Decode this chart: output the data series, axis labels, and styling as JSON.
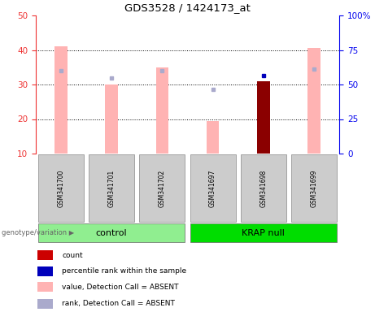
{
  "title": "GDS3528 / 1424173_at",
  "samples": [
    "GSM341700",
    "GSM341701",
    "GSM341702",
    "GSM341697",
    "GSM341698",
    "GSM341699"
  ],
  "pink_bar_heights": [
    41.0,
    30.0,
    35.0,
    19.5,
    31.0,
    40.5
  ],
  "blue_sq_vals": [
    34.0,
    32.0,
    34.0,
    28.5,
    32.5,
    34.5
  ],
  "red_bar_index": 4,
  "red_bar_height": 31.0,
  "dark_blue_index": 4,
  "ylim_left": [
    10,
    50
  ],
  "yticks_left": [
    10,
    20,
    30,
    40,
    50
  ],
  "ylim_right": [
    0,
    100
  ],
  "yticks_right": [
    0,
    25,
    50,
    75,
    100
  ],
  "yticklabels_right": [
    "0",
    "25",
    "50",
    "75",
    "100%"
  ],
  "grid_lines": [
    20,
    30,
    40
  ],
  "left_axis_color": "#ee3333",
  "right_axis_color": "#0000ee",
  "pink_bar_color": "#ffb3b3",
  "blue_sq_color": "#aaaacc",
  "dark_blue_color": "#0000bb",
  "red_bar_color": "#8b0000",
  "control_color": "#90ee90",
  "krap_color": "#00dd00",
  "label_box_color": "#cccccc",
  "bar_width": 0.25,
  "legend_items": [
    {
      "color": "#cc0000",
      "label": "count"
    },
    {
      "color": "#0000bb",
      "label": "percentile rank within the sample"
    },
    {
      "color": "#ffb3b3",
      "label": "value, Detection Call = ABSENT"
    },
    {
      "color": "#aaaacc",
      "label": "rank, Detection Call = ABSENT"
    }
  ]
}
